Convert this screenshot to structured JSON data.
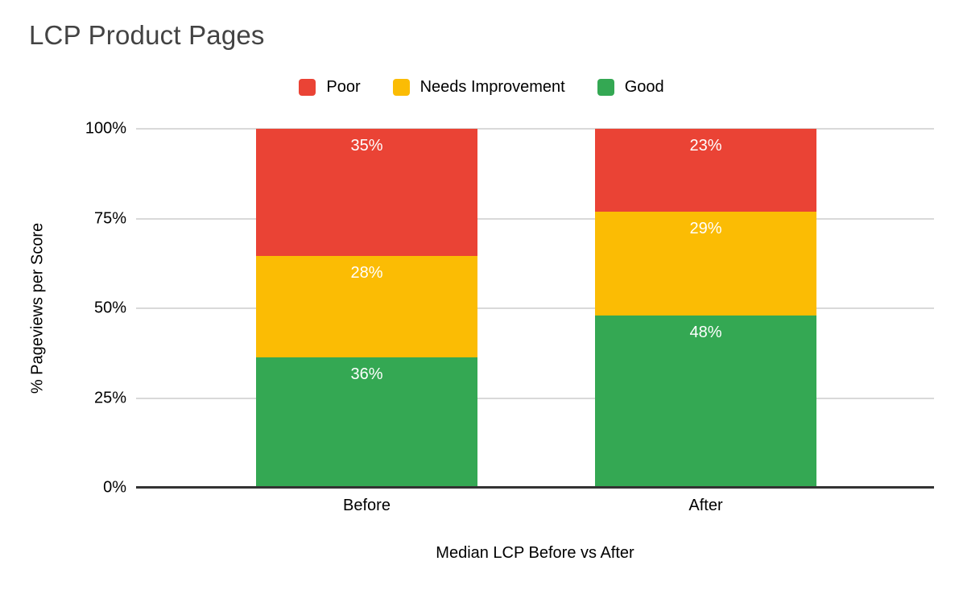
{
  "title": "LCP Product Pages",
  "legend": [
    {
      "label": "Poor",
      "color": "#EA4335"
    },
    {
      "label": "Needs Improvement",
      "color": "#FBBC04"
    },
    {
      "label": "Good",
      "color": "#34A853"
    }
  ],
  "y_axis": {
    "title": "% Pageviews per Score",
    "ticks_top_down": [
      "100%",
      "75%",
      "50%",
      "25%",
      "0%"
    ]
  },
  "x_axis": {
    "title": "Median LCP Before vs After",
    "categories": [
      "Before",
      "After"
    ]
  },
  "colors": {
    "poor": "#EA4335",
    "needs_improvement": "#FBBC04",
    "good": "#34A853",
    "gridline": "#d9d9d9",
    "axis_line": "#333333",
    "title_text": "#434343",
    "value_label_text": "#ffffff"
  },
  "chart_data": {
    "type": "bar",
    "stacked": "percent",
    "title": "LCP Product Pages",
    "categories": [
      "Before",
      "After"
    ],
    "series": [
      {
        "name": "Poor",
        "color": "#EA4335",
        "values": [
          35,
          23
        ],
        "labels": [
          "35%",
          "23%"
        ]
      },
      {
        "name": "Needs Improvement",
        "color": "#FBBC04",
        "values": [
          28,
          29
        ],
        "labels": [
          "28%",
          "29%"
        ]
      },
      {
        "name": "Good",
        "color": "#34A853",
        "values": [
          36,
          48
        ],
        "labels": [
          "36%",
          "48%"
        ]
      }
    ],
    "xlabel": "Median LCP Before vs After",
    "ylabel": "% Pageviews per Score",
    "ylim": [
      0,
      100
    ],
    "y_tick_labels": [
      "0%",
      "25%",
      "50%",
      "75%",
      "100%"
    ],
    "grid": true,
    "legend_position": "top",
    "value_labels_shown": true,
    "value_label_position": "inside-top"
  }
}
